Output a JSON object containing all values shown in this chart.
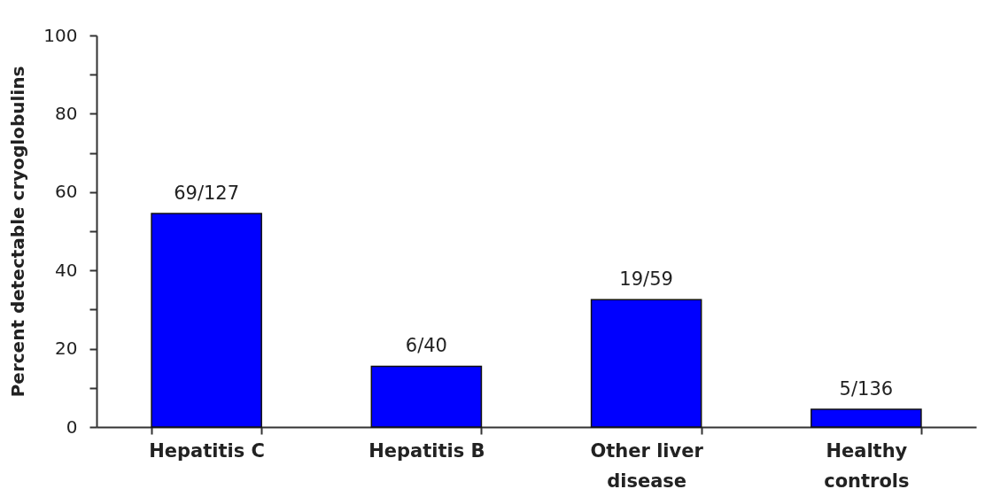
{
  "chart_data": {
    "type": "bar",
    "ylabel": "Percent detectable cryoglobulins",
    "categories": [
      "Hepatitis C",
      "Hepatitis B",
      "Other liver disease",
      "Healthy controls"
    ],
    "values": [
      54.5,
      15.5,
      32.5,
      4.5
    ],
    "value_labels": [
      "69/127",
      "6/40",
      "19/59",
      "5/136"
    ],
    "color": "#0000ff",
    "ylim": [
      0,
      100
    ],
    "yticks": [
      0,
      {
        "value": 10,
        "label": null
      },
      20,
      {
        "value": 30,
        "label": null
      },
      40,
      {
        "value": 50,
        "label": null
      },
      60,
      {
        "value": 70,
        "label": null
      },
      80,
      {
        "value": 90,
        "label": null
      },
      100
    ],
    "grid": false
  }
}
